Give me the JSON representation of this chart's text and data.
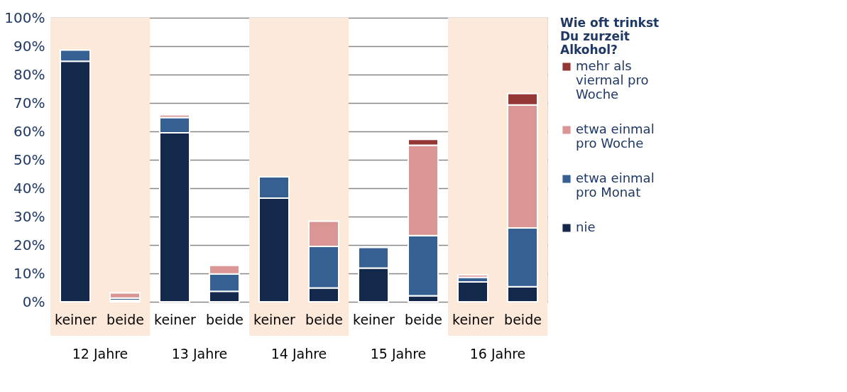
{
  "chart_data": {
    "type": "bar",
    "stacked": true,
    "legend_title": "Wie oft trinkst Du zurzeit Alkohol?",
    "categories": [
      "keiner",
      "beide",
      "keiner",
      "beide",
      "keiner",
      "beide",
      "keiner",
      "beide",
      "keiner",
      "beide"
    ],
    "series": [
      {
        "name": "nie",
        "color": "#13284a",
        "values": [
          84.7,
          0.5,
          59.5,
          3.7,
          36.5,
          4.9,
          11.9,
          2.1,
          7.0,
          5.3
        ]
      },
      {
        "name": "etwa einmal pro Monat",
        "color": "#376092",
        "values": [
          3.9,
          0.8,
          5.4,
          6.1,
          7.5,
          14.6,
          7.2,
          21.2,
          1.6,
          20.7
        ]
      },
      {
        "name": "etwa einmal pro Woche",
        "color": "#d99694",
        "values": [
          null,
          1.8,
          0.9,
          3.0,
          null,
          8.9,
          null,
          31.8,
          0.9,
          43.3
        ]
      },
      {
        "name": "mehr als viermal pro Woche",
        "color": "#953735",
        "values": [
          null,
          null,
          null,
          null,
          null,
          null,
          null,
          2.1,
          null,
          4.0
        ]
      }
    ],
    "annotations": [
      "12 Jahre",
      "13 Jahre",
      "14 Jahre",
      "15 Jahre",
      "16 Jahre"
    ],
    "ylim": [
      0,
      100
    ],
    "yticks": [
      {
        "value": 0,
        "label": "0%"
      },
      {
        "value": 10,
        "label": "10%"
      },
      {
        "value": 20,
        "label": "20%"
      },
      {
        "value": 30,
        "label": "30%"
      },
      {
        "value": 40,
        "label": "40%"
      },
      {
        "value": 50,
        "label": "50%"
      },
      {
        "value": 60,
        "label": "60%"
      },
      {
        "value": 70,
        "label": "70%"
      },
      {
        "value": 80,
        "label": "80%"
      },
      {
        "value": 90,
        "label": "90%"
      },
      {
        "value": 100,
        "label": "100%"
      }
    ],
    "grid": "y",
    "legend": "right"
  }
}
